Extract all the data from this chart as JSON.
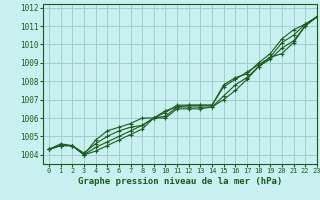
{
  "title": "Graphe pression niveau de la mer (hPa)",
  "bg_color": "#c8f0f0",
  "grid_color": "#a0d0d0",
  "line_color": "#1a5c1a",
  "xlim": [
    -0.5,
    23
  ],
  "ylim": [
    1003.5,
    1012.2
  ],
  "xticks": [
    0,
    1,
    2,
    3,
    4,
    5,
    6,
    7,
    8,
    9,
    10,
    11,
    12,
    13,
    14,
    15,
    16,
    17,
    18,
    19,
    20,
    21,
    22,
    23
  ],
  "yticks": [
    1004,
    1005,
    1006,
    1007,
    1008,
    1009,
    1010,
    1011,
    1012
  ],
  "series": [
    [
      1004.3,
      1004.5,
      1004.5,
      1004.0,
      1004.2,
      1004.5,
      1004.8,
      1005.1,
      1005.4,
      1006.0,
      1006.1,
      1006.6,
      1006.6,
      1006.6,
      1006.6,
      1007.0,
      1007.5,
      1008.1,
      1008.8,
      1009.3,
      1009.5,
      1010.1,
      1011.0,
      1011.5
    ],
    [
      1004.3,
      1004.5,
      1004.5,
      1004.0,
      1004.4,
      1004.7,
      1005.0,
      1005.3,
      1005.6,
      1006.0,
      1006.0,
      1006.5,
      1006.5,
      1006.5,
      1006.6,
      1007.2,
      1007.8,
      1008.2,
      1008.8,
      1009.2,
      1009.8,
      1010.2,
      1011.0,
      1011.5
    ],
    [
      1004.3,
      1004.5,
      1004.5,
      1004.0,
      1004.8,
      1005.3,
      1005.5,
      1005.7,
      1006.0,
      1006.0,
      1006.3,
      1006.7,
      1006.7,
      1006.7,
      1006.7,
      1007.7,
      1008.1,
      1008.5,
      1008.9,
      1009.3,
      1010.1,
      1010.5,
      1011.1,
      1011.5
    ],
    [
      1004.3,
      1004.6,
      1004.5,
      1004.1,
      1004.6,
      1005.0,
      1005.3,
      1005.5,
      1005.6,
      1006.0,
      1006.4,
      1006.6,
      1006.7,
      1006.7,
      1006.7,
      1007.8,
      1008.2,
      1008.4,
      1009.0,
      1009.5,
      1010.3,
      1010.8,
      1011.1,
      1011.5
    ]
  ]
}
